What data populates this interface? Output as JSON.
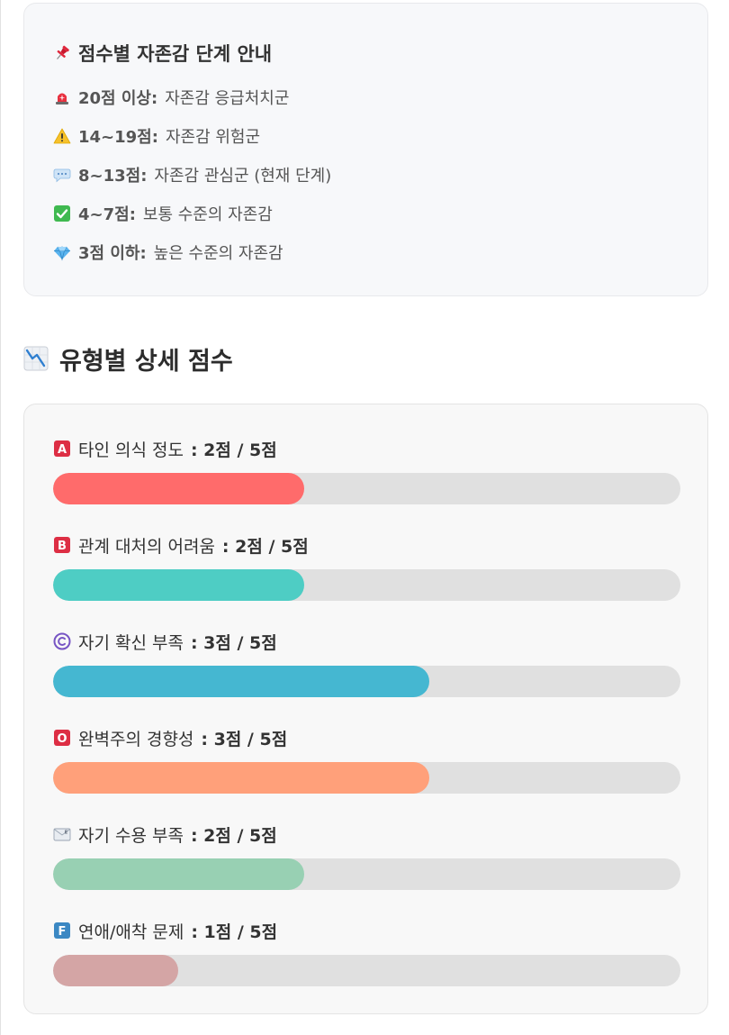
{
  "guide": {
    "title_icon": "pushpin-icon",
    "title": "점수별 자존감 단계 안내",
    "items": [
      {
        "icon": "rotating-light-icon",
        "label": "20점 이상:",
        "text": "자존감 응급처치군"
      },
      {
        "icon": "warning-icon",
        "label": "14~19점:",
        "text": "자존감 위험군"
      },
      {
        "icon": "speech-balloon-icon",
        "label": "8~13점:",
        "text": "자존감 관심군 (현재 단계)"
      },
      {
        "icon": "check-mark-icon",
        "label": "4~7점:",
        "text": "보통 수준의 자존감"
      },
      {
        "icon": "gem-icon",
        "label": "3점 이하:",
        "text": "높은 수준의 자존감"
      }
    ]
  },
  "section": {
    "icon": "chart-decreasing-icon",
    "title": "유형별 상세 점수"
  },
  "scores": [
    {
      "icon": "letter-a-icon",
      "name": "타인 의식 정도",
      "score_text": " : 2점 / 5점",
      "score": 2,
      "max": 5,
      "color": "#ff6b6b"
    },
    {
      "icon": "letter-b-icon",
      "name": "관계 대처의 어려움",
      "score_text": " : 2점 / 5점",
      "score": 2,
      "max": 5,
      "color": "#4ecdc4"
    },
    {
      "icon": "copyright-icon",
      "name": "자기 확신 부족",
      "score_text": " : 3점 / 5점",
      "score": 3,
      "max": 5,
      "color": "#45b7d1"
    },
    {
      "icon": "letter-o-icon",
      "name": "완벽주의 경향성",
      "score_text": " : 3점 / 5점",
      "score": 3,
      "max": 5,
      "color": "#ffa07a"
    },
    {
      "icon": "envelope-e-icon",
      "name": "자기 수용 부족",
      "score_text": " : 2점 / 5점",
      "score": 2,
      "max": 5,
      "color": "#98d0b3"
    },
    {
      "icon": "letter-f-icon",
      "name": "연애/애착 문제",
      "score_text": " : 1점 / 5점",
      "score": 1,
      "max": 5,
      "color": "#d4a5a5"
    }
  ]
}
